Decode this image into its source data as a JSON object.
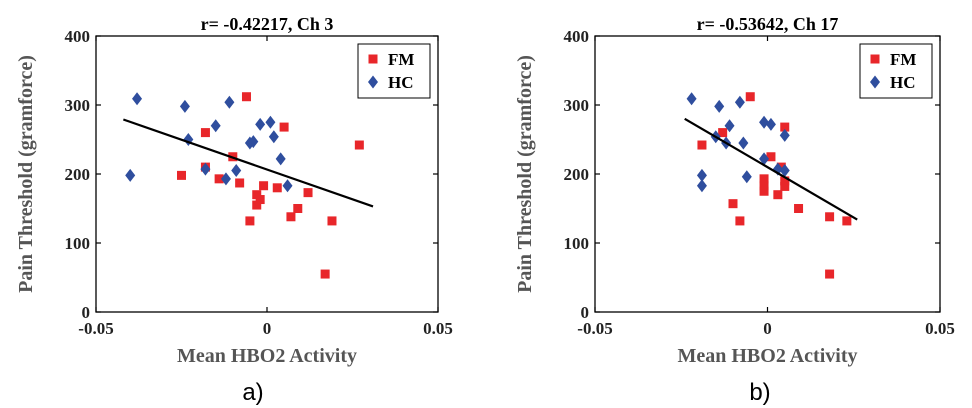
{
  "colors": {
    "FM": "#e8262a",
    "HC": "#2f4e9e",
    "fit": "#000000",
    "axis": "#000000"
  },
  "chart_data": [
    {
      "type": "scatter",
      "title": "r= -0.42217, Ch 3",
      "xlabel": "Mean HBO2 Activity",
      "ylabel": "Pain Threshold (gramforce)",
      "xlim": [
        -0.05,
        0.05
      ],
      "ylim": [
        0,
        400
      ],
      "xticks": [
        "-0.05",
        "0",
        "0.05"
      ],
      "yticks": [
        "0",
        "100",
        "200",
        "300",
        "400"
      ],
      "caption": "a)",
      "legend": {
        "position": "top-right",
        "entries": [
          "FM",
          "HC"
        ]
      },
      "fit_line": {
        "x": [
          -0.042,
          0.031
        ],
        "y": [
          279,
          153
        ]
      },
      "series": [
        {
          "name": "FM",
          "marker": "square",
          "points": [
            [
              -0.006,
              312
            ],
            [
              -0.025,
              198
            ],
            [
              -0.018,
              260
            ],
            [
              -0.018,
              210
            ],
            [
              -0.014,
              193
            ],
            [
              -0.01,
              225
            ],
            [
              -0.008,
              187
            ],
            [
              -0.005,
              132
            ],
            [
              -0.003,
              170
            ],
            [
              -0.003,
              155
            ],
            [
              -0.002,
              163
            ],
            [
              -0.001,
              183
            ],
            [
              0.003,
              180
            ],
            [
              0.005,
              268
            ],
            [
              0.007,
              138
            ],
            [
              0.009,
              150
            ],
            [
              0.012,
              173
            ],
            [
              0.017,
              55
            ],
            [
              0.019,
              132
            ],
            [
              0.027,
              242
            ]
          ]
        },
        {
          "name": "HC",
          "marker": "diamond",
          "points": [
            [
              -0.04,
              198
            ],
            [
              -0.038,
              309
            ],
            [
              -0.024,
              298
            ],
            [
              -0.023,
              250
            ],
            [
              -0.018,
              207
            ],
            [
              -0.015,
              270
            ],
            [
              -0.012,
              193
            ],
            [
              -0.011,
              304
            ],
            [
              -0.009,
              205
            ],
            [
              -0.005,
              245
            ],
            [
              -0.004,
              247
            ],
            [
              -0.002,
              272
            ],
            [
              0.001,
              275
            ],
            [
              0.002,
              254
            ],
            [
              0.004,
              222
            ],
            [
              0.006,
              183
            ]
          ]
        }
      ]
    },
    {
      "type": "scatter",
      "title": "r= -0.53642, Ch 17",
      "xlabel": "Mean HBO2 Activity",
      "ylabel": "Pain Threshold (gramforce)",
      "xlim": [
        -0.05,
        0.05
      ],
      "ylim": [
        0,
        400
      ],
      "xticks": [
        "-0.05",
        "0",
        "0.05"
      ],
      "yticks": [
        "0",
        "100",
        "200",
        "300",
        "400"
      ],
      "caption": "b)",
      "legend": {
        "position": "top-right",
        "entries": [
          "FM",
          "HC"
        ]
      },
      "fit_line": {
        "x": [
          -0.024,
          0.026
        ],
        "y": [
          280,
          134
        ]
      },
      "series": [
        {
          "name": "FM",
          "marker": "square",
          "points": [
            [
              -0.005,
              312
            ],
            [
              -0.013,
              260
            ],
            [
              -0.019,
              242
            ],
            [
              -0.01,
              157
            ],
            [
              -0.008,
              132
            ],
            [
              -0.001,
              193
            ],
            [
              -0.001,
              183
            ],
            [
              -0.001,
              175
            ],
            [
              0.001,
              225
            ],
            [
              0.003,
              170
            ],
            [
              0.004,
              210
            ],
            [
              0.005,
              268
            ],
            [
              0.005,
              190
            ],
            [
              0.005,
              182
            ],
            [
              0.009,
              150
            ],
            [
              0.018,
              138
            ],
            [
              0.018,
              55
            ],
            [
              0.023,
              132
            ]
          ]
        },
        {
          "name": "HC",
          "marker": "diamond",
          "points": [
            [
              -0.022,
              309
            ],
            [
              -0.014,
              298
            ],
            [
              -0.008,
              304
            ],
            [
              -0.011,
              270
            ],
            [
              -0.015,
              254
            ],
            [
              -0.012,
              245
            ],
            [
              -0.007,
              245
            ],
            [
              -0.019,
              198
            ],
            [
              -0.019,
              183
            ],
            [
              -0.006,
              196
            ],
            [
              -0.001,
              275
            ],
            [
              0.001,
              272
            ],
            [
              0.005,
              256
            ],
            [
              -0.001,
              222
            ],
            [
              0.003,
              207
            ],
            [
              0.005,
              205
            ]
          ]
        }
      ]
    }
  ]
}
